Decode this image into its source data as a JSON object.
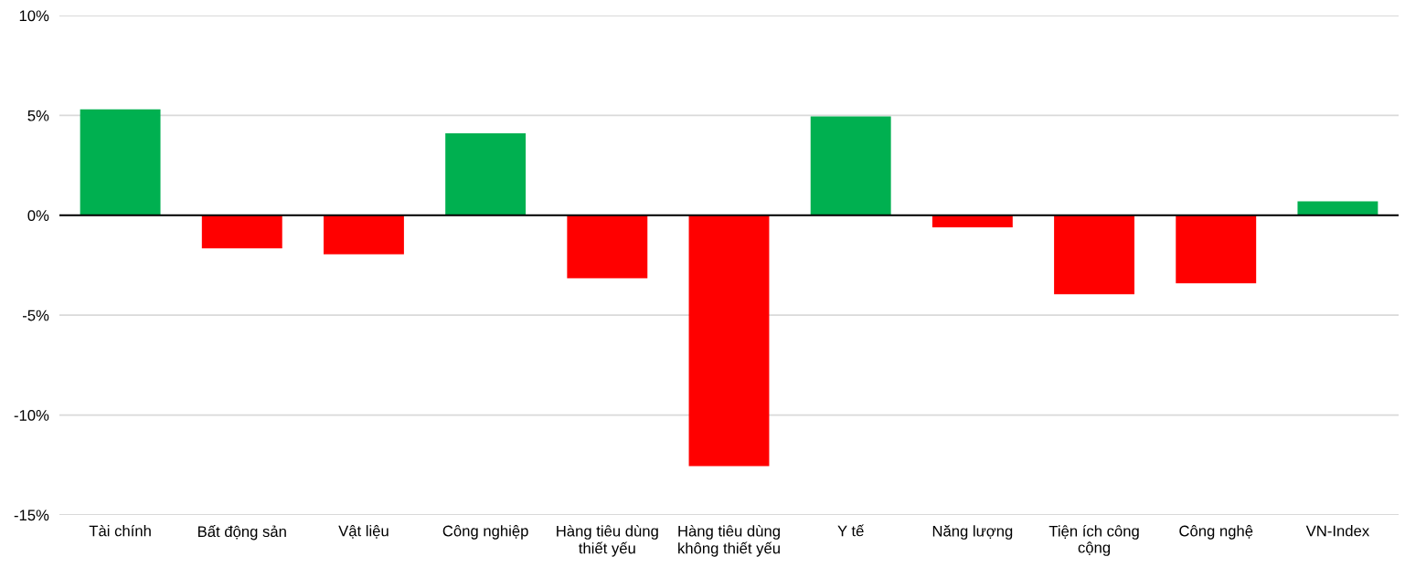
{
  "chart_data": {
    "type": "bar",
    "categories": [
      "Tài chính",
      "Bất động sản",
      "Vật liệu",
      "Công nghiệp",
      "Hàng tiêu dùng\nthiết yếu",
      "Hàng tiêu dùng\nkhông thiết yếu",
      "Y tế",
      "Năng lượng",
      "Tiện ích công\ncộng",
      "Công nghệ",
      "VN-Index"
    ],
    "values": [
      5.3,
      -1.65,
      -1.95,
      4.1,
      -3.15,
      -12.55,
      4.95,
      -0.6,
      -3.95,
      -3.4,
      0.7
    ],
    "colors": [
      "#00b050",
      "#ff0000",
      "#ff0000",
      "#00b050",
      "#ff0000",
      "#ff0000",
      "#00b050",
      "#ff0000",
      "#ff0000",
      "#ff0000",
      "#00b050"
    ],
    "ylim": [
      -15,
      10
    ],
    "yticks": [
      {
        "value": -15,
        "label": "-15%"
      },
      {
        "value": -10,
        "label": "-10%"
      },
      {
        "value": -5,
        "label": "-5%"
      },
      {
        "value": 0,
        "label": "0%"
      },
      {
        "value": 5,
        "label": "5%"
      },
      {
        "value": 10,
        "label": "10%"
      }
    ],
    "grid": "y",
    "ref_lines": [
      {
        "axis": "y",
        "value": 0,
        "color": "#000000"
      }
    ]
  }
}
